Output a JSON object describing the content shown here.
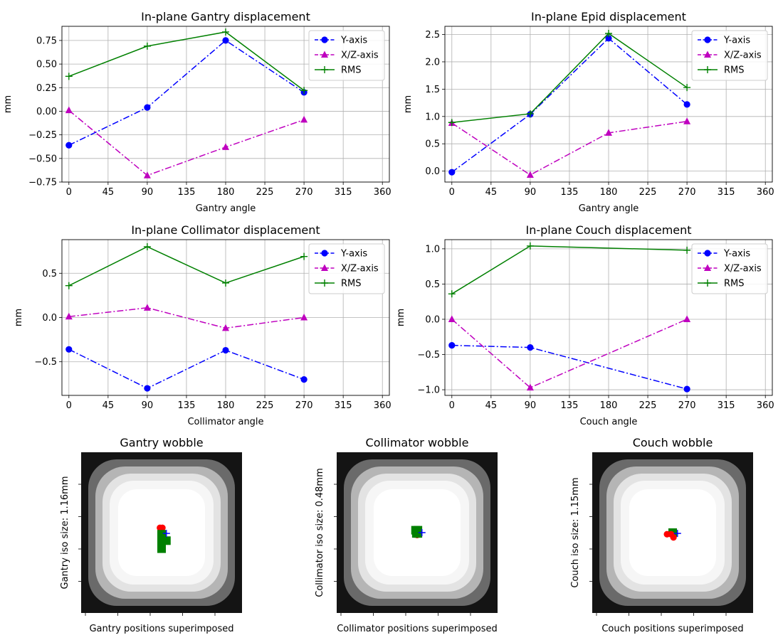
{
  "chart_data": [
    {
      "type": "line",
      "title": "In-plane Gantry displacement",
      "xlabel": "Gantry angle",
      "ylabel": "mm",
      "xlim": [
        -8,
        368
      ],
      "ylim": [
        -0.75,
        0.9
      ],
      "xticks": [
        0,
        45,
        90,
        135,
        180,
        225,
        270,
        315,
        360
      ],
      "yticks": [
        -0.75,
        -0.5,
        -0.25,
        0.0,
        0.25,
        0.5,
        0.75
      ],
      "ytick_labels": [
        "−0.75",
        "−0.50",
        "−0.25",
        "0.00",
        "0.25",
        "0.50",
        "0.75"
      ],
      "grid": true,
      "legend": "top-right",
      "x": [
        0,
        90,
        180,
        270
      ],
      "series": [
        {
          "name": "Y-axis",
          "values": [
            -0.36,
            0.04,
            0.75,
            0.2
          ],
          "color": "#0000ff",
          "marker": "circle",
          "dash": "dashdot"
        },
        {
          "name": "X/Z-axis",
          "values": [
            0.01,
            -0.68,
            -0.38,
            -0.09
          ],
          "color": "#bf00bf",
          "marker": "triangle",
          "dash": "dashdot"
        },
        {
          "name": "RMS",
          "values": [
            0.37,
            0.69,
            0.84,
            0.22
          ],
          "color": "#008000",
          "marker": "plus",
          "dash": "solid"
        }
      ]
    },
    {
      "type": "line",
      "title": "In-plane Epid displacement",
      "xlabel": "Gantry angle",
      "ylabel": "mm",
      "xlim": [
        -8,
        368
      ],
      "ylim": [
        -0.2,
        2.65
      ],
      "xticks": [
        0,
        45,
        90,
        135,
        180,
        225,
        270,
        315,
        360
      ],
      "yticks": [
        0,
        0.5,
        1.0,
        1.5,
        2.0,
        2.5
      ],
      "ytick_labels": [
        "0.0",
        "0.5",
        "1.0",
        "1.5",
        "2.0",
        "2.5"
      ],
      "grid": true,
      "legend": "top-right",
      "x": [
        0,
        90,
        180,
        270
      ],
      "series": [
        {
          "name": "Y-axis",
          "values": [
            -0.02,
            1.04,
            2.43,
            1.22
          ],
          "color": "#0000ff",
          "marker": "circle",
          "dash": "dashdot"
        },
        {
          "name": "X/Z-axis",
          "values": [
            0.88,
            -0.07,
            0.7,
            0.91
          ],
          "color": "#bf00bf",
          "marker": "triangle",
          "dash": "dashdot"
        },
        {
          "name": "RMS",
          "values": [
            0.89,
            1.05,
            2.52,
            1.53
          ],
          "color": "#008000",
          "marker": "plus",
          "dash": "solid"
        }
      ]
    },
    {
      "type": "line",
      "title": "In-plane Collimator displacement",
      "xlabel": "Collimator angle",
      "ylabel": "mm",
      "xlim": [
        -8,
        368
      ],
      "ylim": [
        -0.88,
        0.88
      ],
      "xticks": [
        0,
        45,
        90,
        135,
        180,
        225,
        270,
        315,
        360
      ],
      "yticks": [
        -0.5,
        0.0,
        0.5
      ],
      "ytick_labels": [
        "−0.5",
        "0.0",
        "0.5"
      ],
      "grid": true,
      "legend": "top-right",
      "x": [
        0,
        90,
        180,
        270
      ],
      "series": [
        {
          "name": "Y-axis",
          "values": [
            -0.36,
            -0.8,
            -0.37,
            -0.7
          ],
          "color": "#0000ff",
          "marker": "circle",
          "dash": "dashdot"
        },
        {
          "name": "X/Z-axis",
          "values": [
            0.01,
            0.11,
            -0.12,
            0.0
          ],
          "color": "#bf00bf",
          "marker": "triangle",
          "dash": "dashdot"
        },
        {
          "name": "RMS",
          "values": [
            0.36,
            0.8,
            0.39,
            0.69
          ],
          "color": "#008000",
          "marker": "plus",
          "dash": "solid"
        }
      ]
    },
    {
      "type": "line",
      "title": "In-plane Couch displacement",
      "xlabel": "Couch angle",
      "ylabel": "mm",
      "xlim": [
        -8,
        368
      ],
      "ylim": [
        -1.08,
        1.13
      ],
      "xticks": [
        0,
        45,
        90,
        135,
        180,
        225,
        270,
        315,
        360
      ],
      "yticks": [
        -1.0,
        -0.5,
        0.0,
        0.5,
        1.0
      ],
      "ytick_labels": [
        "−1.0",
        "−0.5",
        "0.0",
        "0.5",
        "1.0"
      ],
      "grid": true,
      "legend": "top-right",
      "x": [
        0,
        90,
        270
      ],
      "series": [
        {
          "name": "Y-axis",
          "values": [
            -0.37,
            -0.4,
            -0.99
          ],
          "color": "#0000ff",
          "marker": "circle",
          "dash": "dashdot"
        },
        {
          "name": "X/Z-axis",
          "values": [
            0.0,
            -0.97,
            0.0
          ],
          "color": "#bf00bf",
          "marker": "triangle",
          "dash": "dashdot"
        },
        {
          "name": "RMS",
          "values": [
            0.36,
            1.04,
            0.98
          ],
          "color": "#008000",
          "marker": "plus",
          "dash": "solid"
        }
      ]
    },
    {
      "type": "scatter",
      "title": "Gantry wobble",
      "xlabel": "Gantry positions superimposed",
      "ylabel": "Gantry iso size: 1.16mm",
      "xticks_count": 5,
      "yticks_count": 4,
      "background": "gray-gradient-square",
      "points": [
        {
          "x": 0.49,
          "y": 0.47,
          "color": "#ff0000",
          "marker": "circle"
        },
        {
          "x": 0.505,
          "y": 0.47,
          "color": "#ff0000",
          "marker": "circle"
        },
        {
          "x": 0.5,
          "y": 0.53,
          "color": "#ff0000",
          "marker": "circle"
        },
        {
          "x": 0.5,
          "y": 0.51,
          "color": "#008000",
          "marker": "square"
        },
        {
          "x": 0.5,
          "y": 0.515,
          "color": "#008000",
          "marker": "square"
        },
        {
          "x": 0.53,
          "y": 0.55,
          "color": "#008000",
          "marker": "square"
        },
        {
          "x": 0.5,
          "y": 0.56,
          "color": "#008000",
          "marker": "square"
        },
        {
          "x": 0.5,
          "y": 0.6,
          "color": "#008000",
          "marker": "square"
        },
        {
          "x": 0.53,
          "y": 0.505,
          "color": "#0000ff",
          "marker": "plus"
        }
      ]
    },
    {
      "type": "scatter",
      "title": "Collimator wobble",
      "xlabel": "Collimator positions superimposed",
      "ylabel": "Collimator iso size: 0.48mm",
      "xticks_count": 5,
      "yticks_count": 4,
      "background": "gray-gradient-square",
      "points": [
        {
          "x": 0.495,
          "y": 0.5,
          "color": "#ff0000",
          "marker": "circle"
        },
        {
          "x": 0.5,
          "y": 0.515,
          "color": "#ff0000",
          "marker": "circle"
        },
        {
          "x": 0.49,
          "y": 0.485,
          "color": "#008000",
          "marker": "square"
        },
        {
          "x": 0.505,
          "y": 0.485,
          "color": "#008000",
          "marker": "square"
        },
        {
          "x": 0.495,
          "y": 0.505,
          "color": "#008000",
          "marker": "square"
        },
        {
          "x": 0.505,
          "y": 0.505,
          "color": "#008000",
          "marker": "square"
        },
        {
          "x": 0.53,
          "y": 0.5,
          "color": "#0000ff",
          "marker": "plus"
        }
      ]
    },
    {
      "type": "scatter",
      "title": "Couch wobble",
      "xlabel": "Couch positions superimposed",
      "ylabel": "Couch iso size: 1.15mm",
      "xticks_count": 5,
      "yticks_count": 4,
      "background": "gray-gradient-square",
      "points": [
        {
          "x": 0.5,
          "y": 0.5,
          "color": "#008000",
          "marker": "square"
        },
        {
          "x": 0.465,
          "y": 0.51,
          "color": "#ff0000",
          "marker": "circle"
        },
        {
          "x": 0.49,
          "y": 0.51,
          "color": "#ff0000",
          "marker": "circle"
        },
        {
          "x": 0.505,
          "y": 0.53,
          "color": "#ff0000",
          "marker": "circle"
        },
        {
          "x": 0.53,
          "y": 0.505,
          "color": "#0000ff",
          "marker": "plus"
        }
      ]
    }
  ]
}
